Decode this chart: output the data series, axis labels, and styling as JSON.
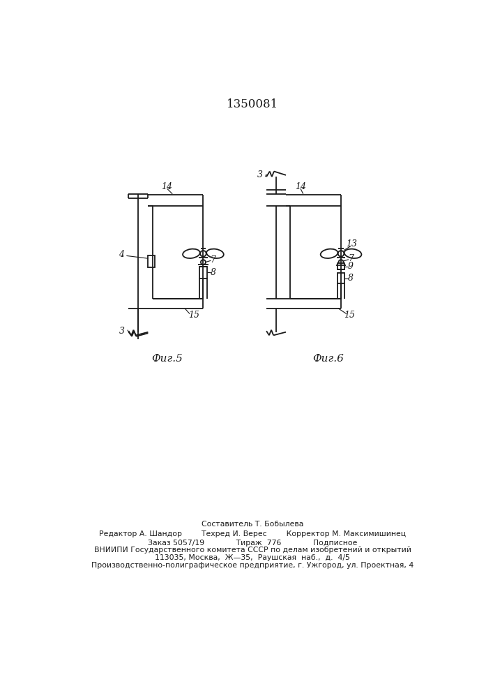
{
  "title_number": "1350081",
  "fig5_label": "Фиг.5",
  "fig6_label": "Фиг.6",
  "bg_color": "#ffffff",
  "line_color": "#1a1a1a",
  "lw": 1.3,
  "footer_lines": [
    "Составитель Т. Бобылева",
    "Редактор А. Шандор        Техред И. Верес        Корректор М. Максимишинец",
    "Заказ 5057/19             Тираж  776             Подписное",
    "ВНИИПИ Государственного комитета СССР по делам изобретений и открытий",
    "113035, Москва,  Ж—35,  Раушская  наб.,  д.  4/5",
    "Производственно-полиграфическое предприятие, г. Ужгород, ул. Проектная, 4"
  ]
}
